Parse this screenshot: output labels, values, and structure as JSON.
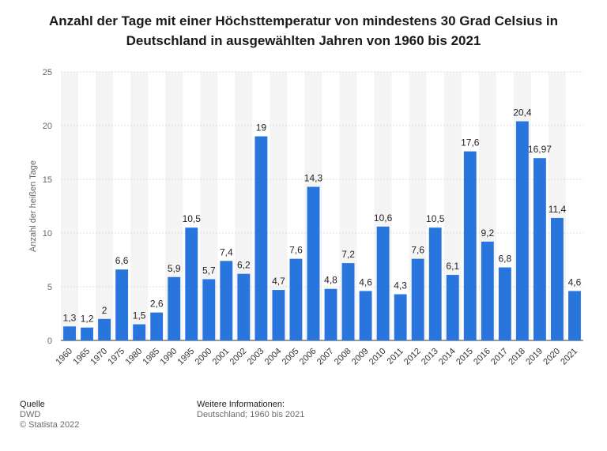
{
  "title_line1": "Anzahl der Tage mit einer Höchsttemperatur von mindestens 30 Grad Celsius in",
  "title_line2": "Deutschland in ausgewählten Jahren von 1960 bis 2021",
  "footer": {
    "source_heading": "Quelle",
    "source": "DWD",
    "copyright": "© Statista 2022",
    "info_heading": "Weitere Informationen:",
    "info": "Deutschland; 1960 bis 2021"
  },
  "colors": {
    "bar": "#2876dd",
    "grid": "#dddddd",
    "band": "#f4f4f4"
  },
  "chart_data": {
    "type": "bar",
    "categories": [
      "1960",
      "1965",
      "1970",
      "1975",
      "1980",
      "1985",
      "1990",
      "1995",
      "2000",
      "2001",
      "2002",
      "2003",
      "2004",
      "2005",
      "2006",
      "2007",
      "2008",
      "2009",
      "2010",
      "2011",
      "2012",
      "2013",
      "2014",
      "2015",
      "2016",
      "2017",
      "2018",
      "2019",
      "2020",
      "2021"
    ],
    "values": [
      1.3,
      1.2,
      2,
      6.6,
      1.5,
      2.6,
      5.9,
      10.5,
      5.7,
      7.4,
      6.2,
      19,
      4.7,
      7.6,
      14.3,
      4.8,
      7.2,
      4.6,
      10.6,
      4.3,
      7.6,
      10.5,
      6.1,
      17.6,
      9.2,
      6.8,
      20.4,
      16.97,
      11.4,
      4.6
    ],
    "value_labels": [
      "1,3",
      "1,2",
      "2",
      "6,6",
      "1,5",
      "2,6",
      "5,9",
      "10,5",
      "5,7",
      "7,4",
      "6,2",
      "19",
      "4,7",
      "7,6",
      "14,3",
      "4,8",
      "7,2",
      "4,6",
      "10,6",
      "4,3",
      "7,6",
      "10,5",
      "6,1",
      "17,6",
      "9,2",
      "6,8",
      "20,4",
      "16,97",
      "11,4",
      "4,6"
    ],
    "ylabel": "Anzahl der heißen Tage",
    "xlabel": "",
    "ylim": [
      0,
      25
    ],
    "yticks": [
      0,
      5,
      10,
      15,
      20,
      25
    ],
    "grid": true
  }
}
